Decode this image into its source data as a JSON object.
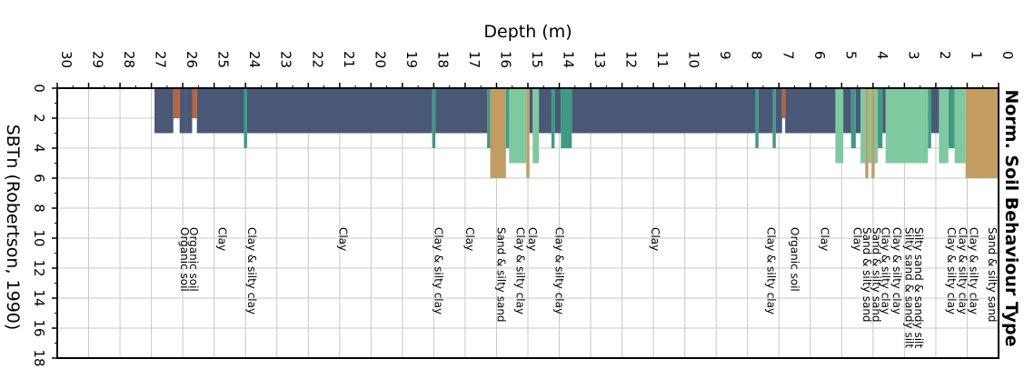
{
  "chart_data": {
    "type": "bar",
    "orientation": "depth-horizontal",
    "title": "Norm. Soil Behaviour Type",
    "xlabel": "Depth (m)",
    "ylabel": "SBTn (Robertson, 1990)",
    "xlim": [
      30,
      0
    ],
    "ylim": [
      0,
      18
    ],
    "x_ticks": [
      30,
      29,
      28,
      27,
      26,
      25,
      24,
      23,
      22,
      21,
      20,
      19,
      18,
      17,
      16,
      15,
      14,
      13,
      12,
      11,
      10,
      9,
      8,
      7,
      6,
      5,
      4,
      3,
      2,
      1,
      0
    ],
    "y_ticks": [
      0,
      2,
      4,
      6,
      8,
      10,
      12,
      14,
      16,
      18
    ],
    "grid": true,
    "colors": {
      "2": "#b8653b",
      "3": "#4a5878",
      "4": "#3e9b82",
      "5": "#7fc9a1",
      "6": "#c29c62"
    },
    "segments": [
      {
        "from": 0.0,
        "to": 1.05,
        "sbt": 6
      },
      {
        "from": 1.05,
        "to": 1.4,
        "sbt": 5
      },
      {
        "from": 1.4,
        "to": 1.6,
        "sbt": 4
      },
      {
        "from": 1.6,
        "to": 1.9,
        "sbt": 5
      },
      {
        "from": 1.9,
        "to": 2.15,
        "sbt": 3
      },
      {
        "from": 2.15,
        "to": 2.25,
        "sbt": 4
      },
      {
        "from": 2.25,
        "to": 2.45,
        "sbt": 5
      },
      {
        "from": 2.45,
        "to": 3.6,
        "sbt": 5
      },
      {
        "from": 3.6,
        "to": 3.7,
        "sbt": 3
      },
      {
        "from": 3.7,
        "to": 3.85,
        "sbt": 4
      },
      {
        "from": 3.85,
        "to": 3.95,
        "sbt": 5
      },
      {
        "from": 3.95,
        "to": 4.05,
        "sbt": 6
      },
      {
        "from": 4.05,
        "to": 4.15,
        "sbt": 5
      },
      {
        "from": 4.15,
        "to": 4.25,
        "sbt": 6
      },
      {
        "from": 4.25,
        "to": 4.4,
        "sbt": 5
      },
      {
        "from": 4.4,
        "to": 4.55,
        "sbt": 3
      },
      {
        "from": 4.55,
        "to": 4.7,
        "sbt": 4
      },
      {
        "from": 4.7,
        "to": 4.95,
        "sbt": 3
      },
      {
        "from": 4.95,
        "to": 5.2,
        "sbt": 5
      },
      {
        "from": 5.2,
        "to": 6.8,
        "sbt": 3
      },
      {
        "from": 6.8,
        "to": 6.9,
        "sbt": 2
      },
      {
        "from": 6.9,
        "to": 7.1,
        "sbt": 3
      },
      {
        "from": 7.1,
        "to": 7.2,
        "sbt": 4
      },
      {
        "from": 7.2,
        "to": 7.65,
        "sbt": 3
      },
      {
        "from": 7.65,
        "to": 7.75,
        "sbt": 4
      },
      {
        "from": 7.75,
        "to": 13.6,
        "sbt": 3
      },
      {
        "from": 13.6,
        "to": 13.95,
        "sbt": 4
      },
      {
        "from": 13.95,
        "to": 14.15,
        "sbt": 3
      },
      {
        "from": 14.15,
        "to": 14.25,
        "sbt": 4
      },
      {
        "from": 14.25,
        "to": 14.65,
        "sbt": 3
      },
      {
        "from": 14.65,
        "to": 14.85,
        "sbt": 5
      },
      {
        "from": 14.85,
        "to": 14.95,
        "sbt": 3
      },
      {
        "from": 14.95,
        "to": 15.05,
        "sbt": 6
      },
      {
        "from": 15.05,
        "to": 15.6,
        "sbt": 5
      },
      {
        "from": 15.6,
        "to": 15.7,
        "sbt": 4
      },
      {
        "from": 15.7,
        "to": 16.2,
        "sbt": 6
      },
      {
        "from": 16.2,
        "to": 16.3,
        "sbt": 4
      },
      {
        "from": 16.3,
        "to": 17.95,
        "sbt": 3
      },
      {
        "from": 17.95,
        "to": 18.05,
        "sbt": 4
      },
      {
        "from": 18.05,
        "to": 23.95,
        "sbt": 3
      },
      {
        "from": 23.95,
        "to": 24.05,
        "sbt": 4
      },
      {
        "from": 24.05,
        "to": 25.55,
        "sbt": 3
      },
      {
        "from": 25.55,
        "to": 25.7,
        "sbt": 2
      },
      {
        "from": 25.7,
        "to": 25.9,
        "sbt": 3
      },
      {
        "from": 25.9,
        "to": 26.1,
        "sbt": 3
      },
      {
        "from": 26.1,
        "to": 26.3,
        "sbt": 2
      },
      {
        "from": 26.3,
        "to": 26.9,
        "sbt": 3
      }
    ],
    "annotations": [
      {
        "depth": 0.2,
        "text": "Sand & silty sand"
      },
      {
        "depth": 0.8,
        "text": "Clay & silty clay"
      },
      {
        "depth": 1.15,
        "text": "Clay & silty clay"
      },
      {
        "depth": 1.5,
        "text": "Clay & silty clay"
      },
      {
        "depth": 2.55,
        "text": "Silty sand & sandy silt"
      },
      {
        "depth": 2.85,
        "text": "Silty sand & sandy silt"
      },
      {
        "depth": 3.25,
        "text": "Clay & silty clay"
      },
      {
        "depth": 3.6,
        "text": "Clay & silty clay"
      },
      {
        "depth": 3.9,
        "text": "Sand & silty sand"
      },
      {
        "depth": 4.2,
        "text": "Sand & silty sand"
      },
      {
        "depth": 4.5,
        "text": "Clay"
      },
      {
        "depth": 5.55,
        "text": "Clay"
      },
      {
        "depth": 6.5,
        "text": "Organic soil"
      },
      {
        "depth": 7.25,
        "text": "Clay & silty clay"
      },
      {
        "depth": 10.95,
        "text": "Clay"
      },
      {
        "depth": 14.0,
        "text": "Clay & silty clay"
      },
      {
        "depth": 14.85,
        "text": "Clay"
      },
      {
        "depth": 15.25,
        "text": "Clay & silty clay"
      },
      {
        "depth": 15.85,
        "text": "Sand & silty sand"
      },
      {
        "depth": 16.85,
        "text": "Clay"
      },
      {
        "depth": 17.85,
        "text": "Clay & silty clay"
      },
      {
        "depth": 20.9,
        "text": "Clay"
      },
      {
        "depth": 23.8,
        "text": "Clay & silty clay"
      },
      {
        "depth": 24.75,
        "text": "Clay"
      },
      {
        "depth": 25.65,
        "text": "Organic soil"
      },
      {
        "depth": 25.95,
        "text": "Organic soil"
      }
    ]
  }
}
